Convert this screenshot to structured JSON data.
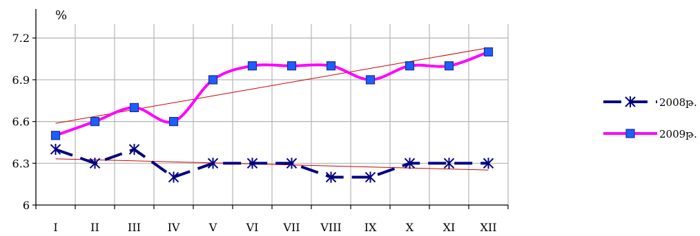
{
  "chart_data": {
    "type": "line",
    "title": "",
    "xlabel": "",
    "ylabel": "%",
    "ylim": [
      6,
      7.3
    ],
    "yticks": [
      "6",
      "6.3",
      "6.6",
      "6.9",
      "7.2"
    ],
    "ytick_values": [
      6,
      6.3,
      6.6,
      6.9,
      7.2
    ],
    "categories": [
      "I",
      "II",
      "III",
      "IV",
      "V",
      "VI",
      "VII",
      "VIII",
      "IX",
      "X",
      "XI",
      "XII"
    ],
    "grid": true,
    "legend_position": "right",
    "series": [
      {
        "name": "2008թ.",
        "color": "#000080",
        "line_style": "dashed",
        "marker": "asterisk",
        "values": [
          6.4,
          6.3,
          6.4,
          6.2,
          6.3,
          6.3,
          6.3,
          6.2,
          6.2,
          6.3,
          6.3,
          6.3
        ]
      },
      {
        "name": "2009թ.",
        "color": "#ff00ff",
        "marker_color": "#1e5eff",
        "line_style": "smooth",
        "marker": "square",
        "values": [
          6.5,
          6.6,
          6.7,
          6.6,
          6.9,
          7.0,
          7.0,
          7.0,
          6.9,
          7.0,
          7.0,
          7.1
        ]
      }
    ],
    "trendline_color": "#cc0000"
  }
}
